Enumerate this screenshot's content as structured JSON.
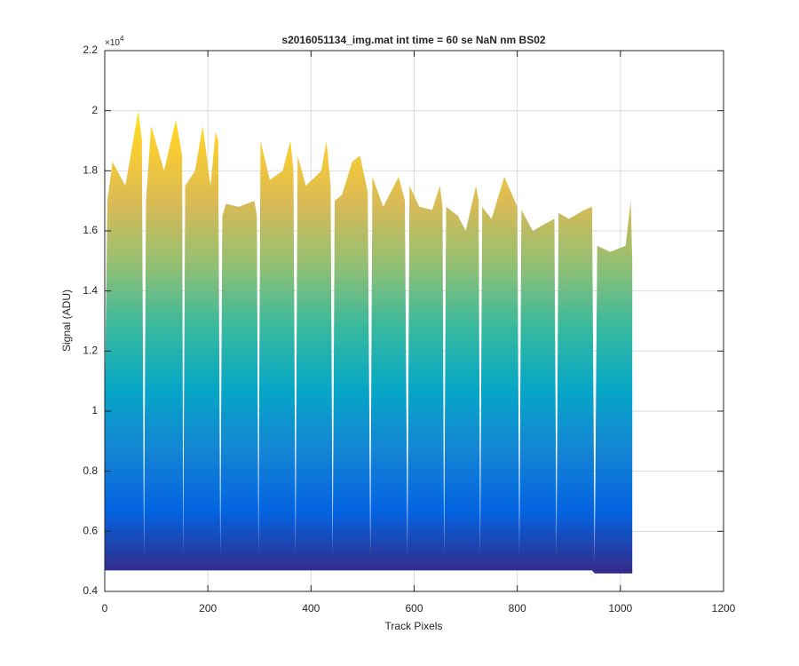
{
  "chart_data": {
    "type": "area",
    "title": "s2016051134_img.mat int time = 60 se  NaN nm BS02",
    "x_label": "Track Pixels",
    "y_label": "Signal (ADU)",
    "y_multiplier": {
      "base": "×10",
      "exponent": "4"
    },
    "x": [
      0,
      5,
      15,
      40,
      65,
      72,
      76,
      80,
      90,
      115,
      138,
      150,
      152,
      156,
      175,
      190,
      205,
      215,
      220,
      224,
      228,
      235,
      260,
      290,
      295,
      298,
      302,
      320,
      345,
      360,
      366,
      370,
      374,
      390,
      420,
      430,
      438,
      442,
      446,
      460,
      480,
      495,
      510,
      515,
      519,
      540,
      570,
      582,
      587,
      591,
      610,
      635,
      650,
      655,
      658,
      662,
      685,
      700,
      720,
      725,
      728,
      732,
      750,
      775,
      800,
      804,
      808,
      830,
      850,
      872,
      876,
      880,
      900,
      930,
      945,
      950,
      955,
      980,
      1010,
      1020,
      1023
    ],
    "values": [
      1.0,
      1.7,
      1.83,
      1.75,
      2.0,
      1.9,
      0.52,
      1.7,
      1.95,
      1.8,
      1.97,
      1.85,
      0.52,
      1.75,
      1.8,
      1.95,
      1.75,
      1.93,
      1.9,
      0.52,
      1.65,
      1.69,
      1.68,
      1.7,
      1.65,
      0.52,
      1.9,
      1.77,
      1.8,
      1.9,
      1.8,
      0.52,
      1.85,
      1.75,
      1.8,
      1.9,
      1.75,
      0.52,
      1.7,
      1.72,
      1.83,
      1.85,
      1.73,
      0.52,
      1.78,
      1.68,
      1.78,
      1.7,
      0.52,
      1.75,
      1.68,
      1.67,
      1.75,
      1.68,
      0.52,
      1.68,
      1.65,
      1.6,
      1.75,
      1.7,
      0.52,
      1.68,
      1.64,
      1.78,
      1.68,
      0.52,
      1.67,
      1.6,
      1.62,
      1.64,
      0.52,
      1.66,
      1.64,
      1.67,
      1.68,
      0.5,
      1.55,
      1.53,
      1.55,
      1.7,
      1.5
    ],
    "lower": [
      0.47,
      0.47,
      0.47,
      0.47,
      0.47,
      0.47,
      0.47,
      0.47,
      0.47,
      0.47,
      0.47,
      0.47,
      0.47,
      0.47,
      0.47,
      0.47,
      0.47,
      0.47,
      0.47,
      0.47,
      0.47,
      0.47,
      0.47,
      0.47,
      0.47,
      0.47,
      0.47,
      0.47,
      0.47,
      0.47,
      0.47,
      0.47,
      0.47,
      0.47,
      0.47,
      0.47,
      0.47,
      0.47,
      0.47,
      0.47,
      0.47,
      0.47,
      0.47,
      0.47,
      0.47,
      0.47,
      0.47,
      0.47,
      0.47,
      0.47,
      0.47,
      0.47,
      0.47,
      0.47,
      0.47,
      0.47,
      0.47,
      0.47,
      0.47,
      0.47,
      0.47,
      0.47,
      0.47,
      0.47,
      0.47,
      0.47,
      0.47,
      0.47,
      0.47,
      0.47,
      0.47,
      0.47,
      0.47,
      0.47,
      0.47,
      0.46,
      0.46,
      0.46,
      0.46,
      0.46,
      0.46
    ],
    "colormap": [
      "#352a87",
      "#0363e1",
      "#1485d4",
      "#06a7c6",
      "#38b99e",
      "#92bf73",
      "#d9ba56",
      "#fcce2e",
      "#f9fb0e"
    ],
    "clim": [
      0.46,
      2.1
    ],
    "xlim": [
      0,
      1200
    ],
    "ylim": [
      0.4,
      2.2
    ],
    "xticks": [
      0,
      200,
      400,
      600,
      800,
      1000,
      1200
    ],
    "yticks": [
      0.4,
      0.6,
      0.8,
      1,
      1.2,
      1.4,
      1.6,
      1.8,
      2,
      2.2
    ],
    "grid": true
  }
}
